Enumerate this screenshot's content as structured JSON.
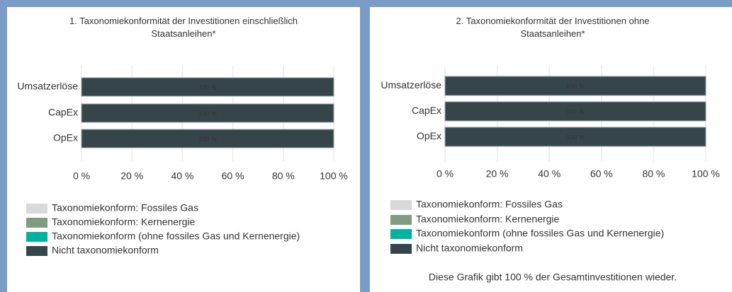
{
  "chart_data": [
    {
      "type": "stacked-bar-horizontal",
      "title": "1. Taxonomiekonformität der Investitionen einschließlich Staatsanleihen*",
      "categories": [
        "Umsatzerlöse",
        "CapEx",
        "OpEx"
      ],
      "series": [
        {
          "name": "Taxonomiekonform: Fossiles Gas",
          "color": "#d9d9d9",
          "values": [
            0,
            0,
            0
          ]
        },
        {
          "name": "Taxonomiekonform: Kernenergie",
          "color": "#7f9c80",
          "values": [
            0,
            0,
            0
          ]
        },
        {
          "name": "Taxonomiekonform (ohne fossiles Gas und Kernenergie)",
          "color": "#00b3a1",
          "values": [
            0,
            0,
            0
          ]
        },
        {
          "name": "Nicht taxonomiekonform",
          "color": "#36454a",
          "values": [
            100,
            100,
            100
          ],
          "value_labels": [
            "100 %",
            "100 %",
            "100 %"
          ]
        }
      ],
      "xlim": [
        0,
        100
      ],
      "xticks": [
        {
          "value": 0,
          "label": "0 %"
        },
        {
          "value": 20,
          "label": "20 %"
        },
        {
          "value": 40,
          "label": "40 %"
        },
        {
          "value": 60,
          "label": "60 %"
        },
        {
          "value": 80,
          "label": "80 %"
        },
        {
          "value": 100,
          "label": "100 %"
        }
      ],
      "grid": true,
      "legend": "bottom"
    },
    {
      "type": "stacked-bar-horizontal",
      "title": "2. Taxonomiekonformität der Investitionen ohne Staatsanleihen*",
      "categories": [
        "Umsatzerlöse",
        "CapEx",
        "OpEx"
      ],
      "series": [
        {
          "name": "Taxonomiekonform: Fossiles Gas",
          "color": "#d9d9d9",
          "values": [
            0,
            0,
            0
          ]
        },
        {
          "name": "Taxonomiekonform: Kernenergie",
          "color": "#7f9c80",
          "values": [
            0,
            0,
            0
          ]
        },
        {
          "name": "Taxonomiekonform (ohne fossiles Gas und Kernenergie)",
          "color": "#00b3a1",
          "values": [
            0,
            0,
            0
          ]
        },
        {
          "name": "Nicht taxonomiekonform",
          "color": "#36454a",
          "values": [
            100,
            100,
            100
          ],
          "value_labels": [
            "100 %",
            "100 %",
            "100 %"
          ]
        }
      ],
      "xlim": [
        0,
        100
      ],
      "xticks": [
        {
          "value": 0,
          "label": "0 %"
        },
        {
          "value": 20,
          "label": "20 %"
        },
        {
          "value": 40,
          "label": "40 %"
        },
        {
          "value": 60,
          "label": "60 %"
        },
        {
          "value": 80,
          "label": "80 %"
        },
        {
          "value": 100,
          "label": "100 %"
        }
      ],
      "grid": true,
      "legend": "bottom",
      "note": "Diese Grafik gibt 100 % der Gesamtinvestitionen wieder."
    }
  ]
}
